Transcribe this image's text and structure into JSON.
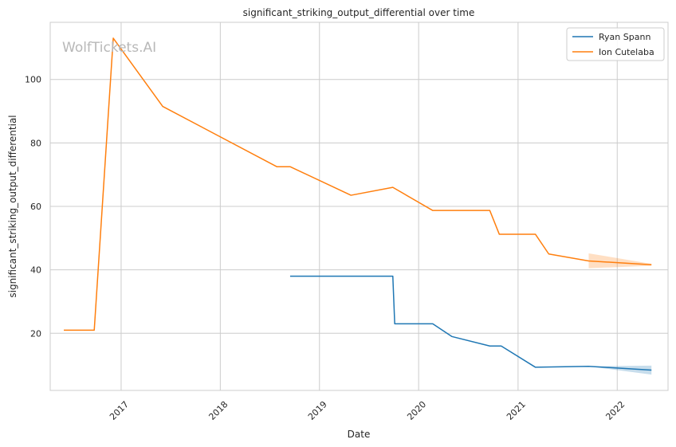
{
  "chart_data": {
    "type": "line",
    "title": "significant_striking_output_differential over time",
    "xlabel": "Date",
    "ylabel": "significant_striking_output_differential",
    "watermark": "WolfTickets.AI",
    "xlim": [
      "2016-04-15",
      "2022-07-07"
    ],
    "ylim": [
      2,
      118
    ],
    "x_ticks": [
      "2017-01-01",
      "2018-01-01",
      "2019-01-01",
      "2020-01-01",
      "2021-01-01",
      "2022-01-01"
    ],
    "x_tick_labels": [
      "2017",
      "2018",
      "2019",
      "2020",
      "2021",
      "2022"
    ],
    "y_ticks": [
      20,
      40,
      60,
      80,
      100
    ],
    "grid": true,
    "legend": "top-right",
    "series": [
      {
        "name": "Ryan Spann",
        "color": "#1f77b4",
        "x": [
          "2018-09-15",
          "2019-09-28",
          "2019-10-05",
          "2020-02-22",
          "2020-05-02",
          "2020-09-19",
          "2020-10-31",
          "2021-03-06",
          "2021-09-18",
          "2022-05-07"
        ],
        "values": [
          38,
          38,
          23,
          23,
          19,
          16,
          16,
          9.3,
          9.6,
          8.4
        ],
        "band": [
          {
            "x": "2021-09-18",
            "low": 9.6,
            "high": 9.6
          },
          {
            "x": "2022-05-07",
            "low": 7.0,
            "high": 9.8
          }
        ]
      },
      {
        "name": "Ion Cutelaba",
        "color": "#ff7f0e",
        "x": [
          "2016-06-04",
          "2016-09-24",
          "2016-12-03",
          "2017-06-03",
          "2018-07-28",
          "2018-09-15",
          "2019-04-27",
          "2019-09-28",
          "2020-02-22",
          "2020-09-19",
          "2020-10-24",
          "2021-03-06",
          "2021-04-24",
          "2021-09-18",
          "2022-05-07"
        ],
        "values": [
          21,
          21,
          113,
          91.5,
          72.5,
          72.5,
          63.5,
          66,
          58.7,
          58.7,
          51.2,
          51.2,
          45,
          42.8,
          41.6
        ],
        "band": [
          {
            "x": "2021-09-18",
            "low": 40.5,
            "high": 45.2
          },
          {
            "x": "2022-05-07",
            "low": 41.3,
            "high": 41.9
          }
        ]
      }
    ]
  }
}
